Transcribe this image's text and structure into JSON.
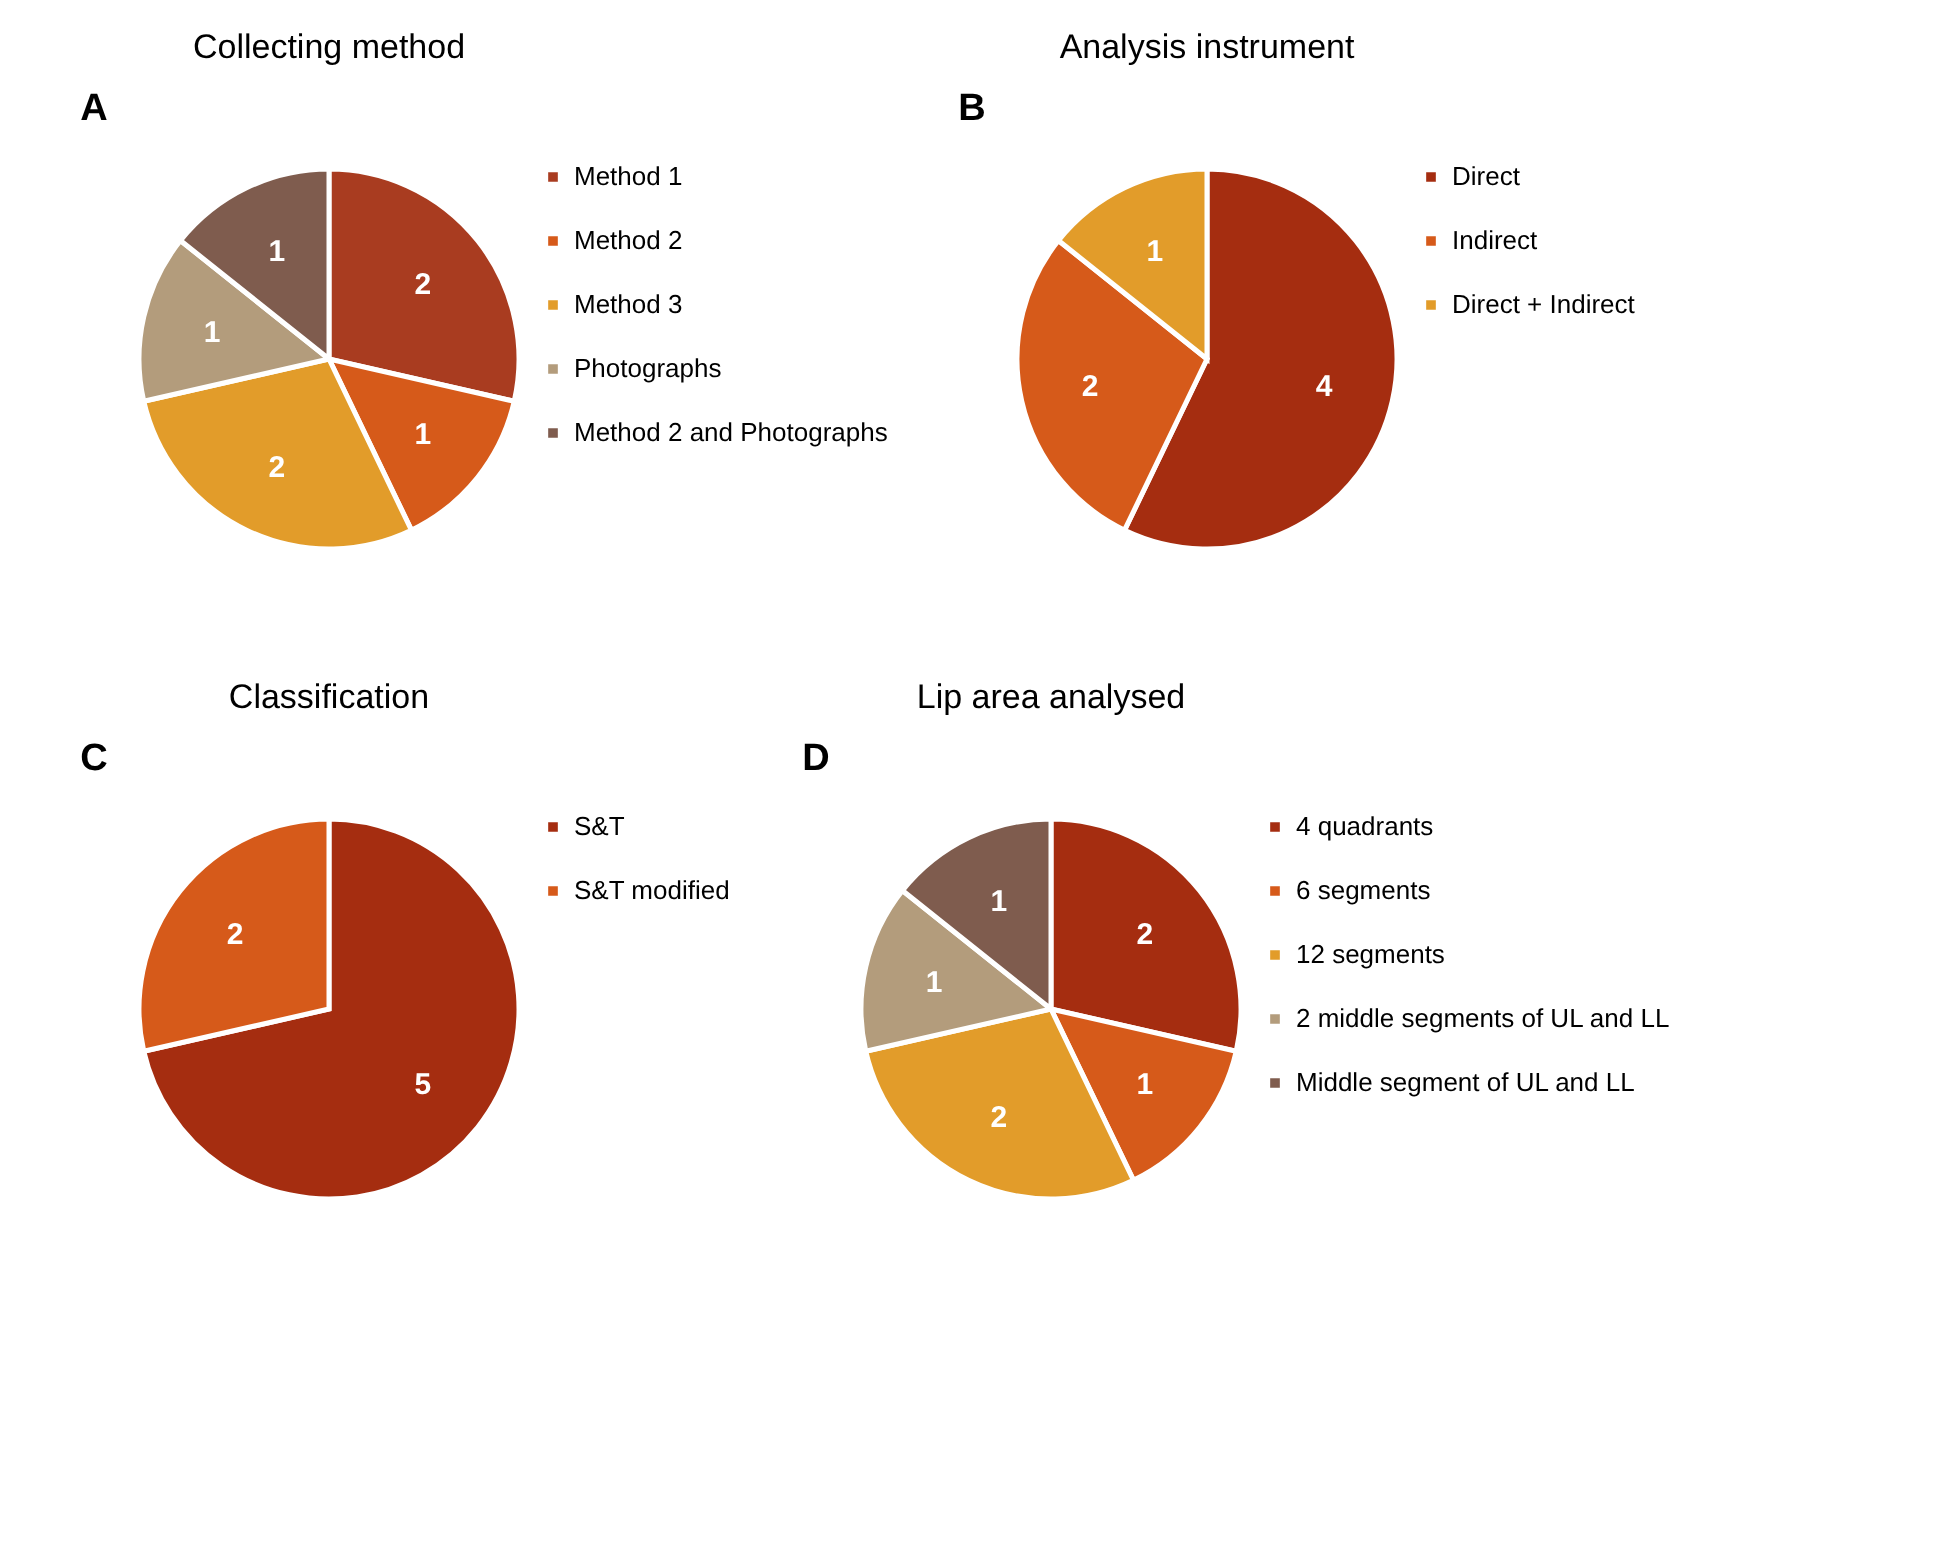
{
  "chart_data": [
    {
      "type": "pie",
      "title": "Collecting method",
      "annotations": [
        "A"
      ],
      "categories": [
        "Method 1",
        "Method 2",
        "Method 3",
        "Photographs",
        "Method 2 and Photographs"
      ],
      "values": [
        2,
        1,
        2,
        1,
        1
      ],
      "colors": [
        "#a93c20",
        "#d65a1a",
        "#e29c2a",
        "#b39c7c",
        "#7f5c4e"
      ],
      "data_labels": true,
      "legend": "right"
    },
    {
      "type": "pie",
      "title": "Analysis instrument",
      "annotations": [
        "B"
      ],
      "categories": [
        "Direct",
        "Indirect",
        "Direct + Indirect"
      ],
      "values": [
        4,
        2,
        1
      ],
      "colors": [
        "#a52d10",
        "#d65a1a",
        "#e29c2a"
      ],
      "data_labels": true,
      "legend": "right"
    },
    {
      "type": "pie",
      "title": "Classification",
      "annotations": [
        "C"
      ],
      "categories": [
        "S&T",
        "S&T modified"
      ],
      "values": [
        5,
        2
      ],
      "colors": [
        "#a52d10",
        "#d65a1a"
      ],
      "data_labels": true,
      "legend": "right"
    },
    {
      "type": "pie",
      "title": "Lip area analysed",
      "annotations": [
        "D"
      ],
      "categories": [
        "4 quadrants",
        "6 segments",
        "12 segments",
        "2 middle segments of UL and LL",
        "Middle segment of UL and LL"
      ],
      "values": [
        2,
        1,
        2,
        1,
        1
      ],
      "colors": [
        "#a52d10",
        "#d65a1a",
        "#e29c2a",
        "#b39c7c",
        "#7f5c4e"
      ],
      "data_labels": true,
      "legend": "right"
    }
  ]
}
